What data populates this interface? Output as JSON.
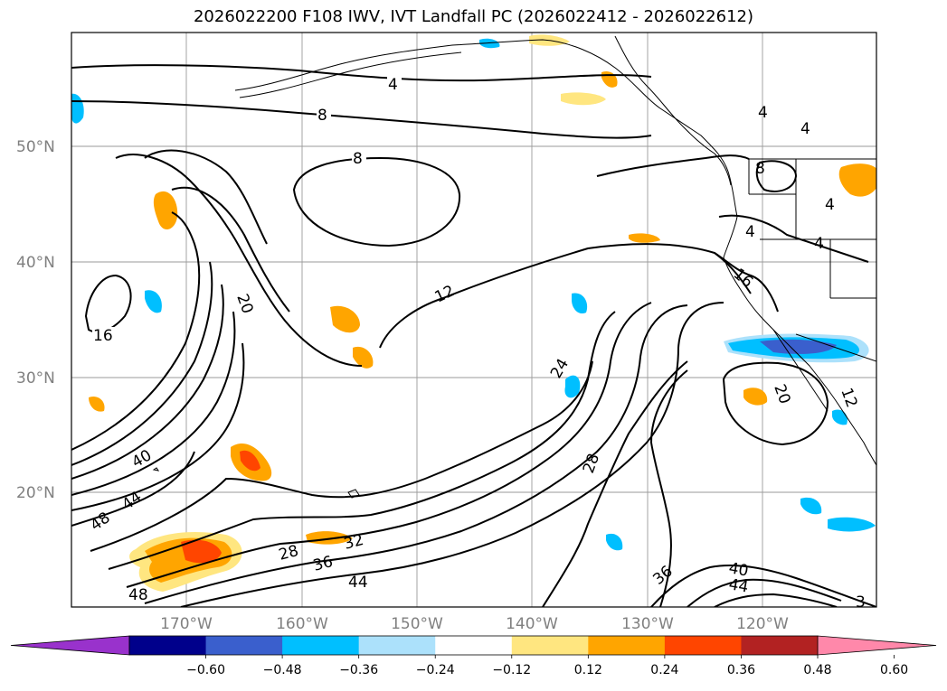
{
  "title": "2026022200 F108 IWV, IVT Landfall PC (2026022412 - 2026022612)",
  "latitude_labels": [
    "50°N",
    "40°N",
    "30°N",
    "20°N"
  ],
  "longitude_labels": [
    "170°W",
    "160°W",
    "150°W",
    "140°W",
    "130°W",
    "120°W"
  ],
  "contour_labels": [
    "4",
    "8",
    "8",
    "4",
    "4",
    "4",
    "4",
    "8",
    "16",
    "20",
    "12",
    "16",
    "24",
    "20",
    "28",
    "40",
    "44",
    "48",
    "28",
    "36",
    "32",
    "44",
    "36",
    "40",
    "44",
    "48",
    "4",
    "3",
    "12"
  ],
  "colorbar": {
    "ticks": [
      "−0.60",
      "−0.48",
      "−0.36",
      "−0.24",
      "−0.12",
      "0.12",
      "0.24",
      "0.36",
      "0.48",
      "0.60"
    ],
    "colors": [
      "#9932cc",
      "#00008b",
      "#3a5fcd",
      "#00bfff",
      "#ace1fb",
      "#ffffff",
      "#ffe680",
      "#ffa500",
      "#ff4500",
      "#b22222",
      "#ff88aa"
    ]
  },
  "colors": {
    "land_outline": "#000000",
    "grid": "#9a9a9a",
    "positive_anomaly": "#ffa500",
    "negative_anomaly": "#00bfff"
  }
}
